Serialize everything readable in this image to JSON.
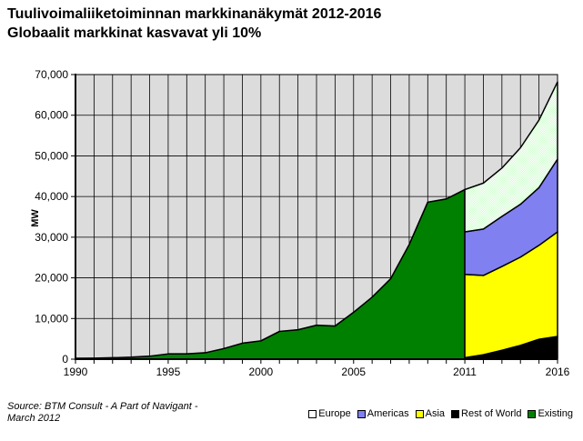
{
  "header": {
    "title_line1": "Tuulivoimaliiketoiminnan markkinanäkymät 2012-2016",
    "title_line2": "Globaalit markkinat kasvavat yli 10%"
  },
  "footer": {
    "source_line1": "Source: BTM Consult - A Part of Navigant -",
    "source_line2": "March 2012"
  },
  "legend": {
    "position": "bottom-right",
    "items": [
      {
        "label": "Europe",
        "swatch_color": "#ffffff"
      },
      {
        "label": "Americas",
        "swatch_color": "#8080f0"
      },
      {
        "label": "Asia",
        "swatch_color": "#ffff00"
      },
      {
        "label": "Rest of World",
        "swatch_color": "#000000"
      },
      {
        "label": "Existing",
        "swatch_color": "#008000"
      }
    ]
  },
  "chart_data": {
    "type": "area",
    "title": "Tuulivoimaliiketoiminnan markkinanäkymät 2012-2016",
    "subtitle": "Globaalit markkinat kasvavat yli 10%",
    "ylabel": "MW",
    "xlabel": "",
    "xlim": [
      1990,
      2016
    ],
    "ylim": [
      0,
      70000
    ],
    "grid": true,
    "plot_bg": "#dcdcdc",
    "grid_color": "#000000",
    "y_ticks": [
      0,
      10000,
      20000,
      30000,
      40000,
      50000,
      60000,
      70000
    ],
    "y_tick_labels": [
      "0",
      "10,000",
      "20,000",
      "30,000",
      "40,000",
      "50,000",
      "60,000",
      "70,000"
    ],
    "x_labeled_years": [
      1990,
      1995,
      2000,
      2005,
      2011,
      2016
    ],
    "historical": {
      "name": "Existing",
      "color": "#008000",
      "years": [
        1990,
        1991,
        1992,
        1993,
        1994,
        1995,
        1996,
        1997,
        1998,
        1999,
        2000,
        2001,
        2002,
        2003,
        2004,
        2005,
        2006,
        2007,
        2008,
        2009,
        2010,
        2011
      ],
      "values": [
        200,
        240,
        340,
        480,
        730,
        1290,
        1290,
        1570,
        2600,
        3920,
        4500,
        6820,
        7230,
        8340,
        8150,
        11530,
        15250,
        19790,
        28190,
        38610,
        39400,
        41710
      ]
    },
    "forecast": {
      "years": [
        2011,
        2012,
        2013,
        2014,
        2015,
        2016
      ],
      "stack_order_bottom_to_top": [
        "Rest of World",
        "Asia",
        "Americas",
        "Europe"
      ],
      "series": [
        {
          "name": "Rest of World",
          "color": "#000000",
          "values": [
            360,
            1100,
            2200,
            3400,
            4900,
            5600
          ]
        },
        {
          "name": "Asia",
          "color": "#ffff00",
          "values": [
            20500,
            19500,
            20600,
            21700,
            23100,
            25700
          ]
        },
        {
          "name": "Americas",
          "color": "#8080f0",
          "values": [
            10450,
            11400,
            12300,
            13000,
            14200,
            17900
          ]
        },
        {
          "name": "Europe",
          "color": "#ffffff",
          "pattern": "light-green-checker",
          "pattern_color": "#ccffcc",
          "values": [
            10400,
            11300,
            11900,
            13900,
            16600,
            19000
          ]
        }
      ],
      "totals": [
        41710,
        43300,
        47000,
        52000,
        58800,
        68200
      ]
    }
  }
}
